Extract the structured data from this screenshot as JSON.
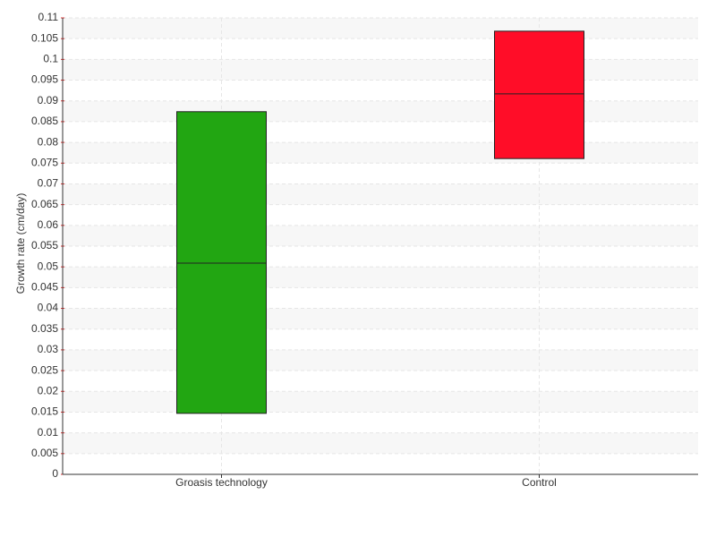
{
  "chart_data": {
    "type": "box",
    "y_label": "Growth rate (cm/day)",
    "categories": [
      "Groasis technology",
      "Control"
    ],
    "series": [
      {
        "color": "#22a612",
        "q1": 0.0147,
        "median": 0.0509,
        "q3": 0.0874
      },
      {
        "color": "#ff0d28",
        "q1": 0.0761,
        "median": 0.0917,
        "q3": 0.1068
      }
    ],
    "ylim": [
      0,
      0.11
    ],
    "yticks": [
      0,
      0.005,
      0.01,
      0.015,
      0.02,
      0.025,
      0.03,
      0.035,
      0.04,
      0.045,
      0.05,
      0.055,
      0.06,
      0.065,
      0.07,
      0.075,
      0.08,
      0.085,
      0.09,
      0.095,
      0.1,
      0.105,
      0.11
    ],
    "grid": true
  }
}
